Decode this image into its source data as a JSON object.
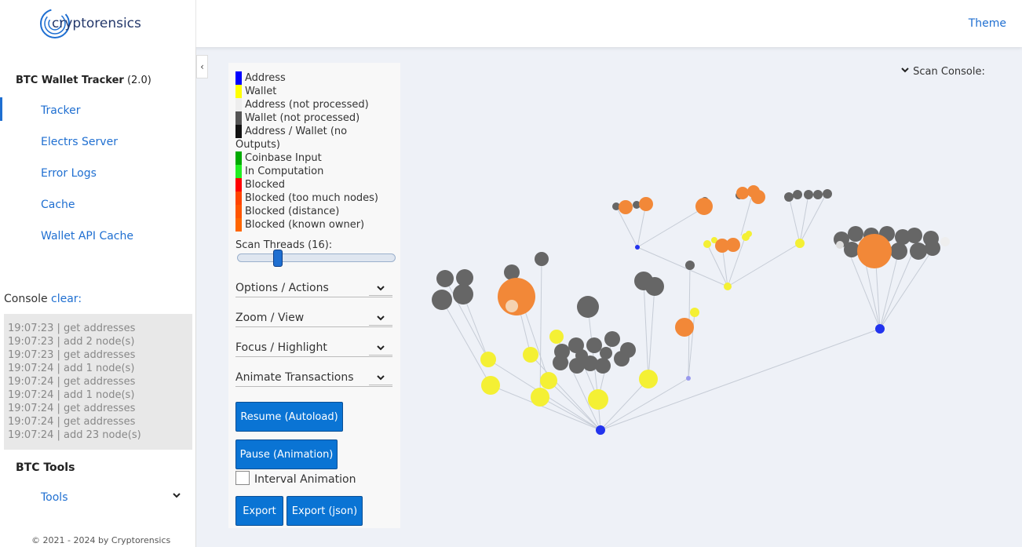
{
  "brand": {
    "name": "cryptorensics"
  },
  "header": {
    "theme_label": "Theme"
  },
  "sidebar": {
    "app_title": "BTC Wallet Tracker",
    "app_version": "(2.0)",
    "items": [
      {
        "label": "Tracker"
      },
      {
        "label": "Electrs Server"
      },
      {
        "label": "Error Logs"
      },
      {
        "label": "Cache"
      },
      {
        "label": "Wallet API Cache"
      }
    ],
    "console_label": "Console",
    "console_clear": "clear:",
    "console_lines": [
      "19:07:23 | get addresses",
      "19:07:23 | add 2 node(s)",
      "19:07:23 | get addresses",
      "19:07:24 | add 1 node(s)",
      "19:07:24 | get addresses",
      "19:07:24 | add 1 node(s)",
      "19:07:24 | get addresses",
      "19:07:24 | get addresses",
      "19:07:24 | add 23 node(s)"
    ],
    "tools_section": "BTC Tools",
    "tools_item": "Tools",
    "footer": "© 2021 - 2024 by Cryptorensics"
  },
  "legend": [
    {
      "label": "Address",
      "color": "#0000ff"
    },
    {
      "label": "Wallet",
      "color": "#ffff00"
    },
    {
      "label": "Address (not processed)",
      "color": "#eeeeee"
    },
    {
      "label": "Wallet (not processed)",
      "color": "#555555"
    },
    {
      "label": "Address / Wallet (no Outputs)",
      "color": "#111111"
    },
    {
      "label": "Coinbase Input",
      "color": "#00aa00"
    },
    {
      "label": "In Computation",
      "color": "#22ee22"
    },
    {
      "label": "Blocked",
      "color": "#ff0000"
    },
    {
      "label": "Blocked (too much nodes)",
      "color": "#ff4400"
    },
    {
      "label": "Blocked (distance)",
      "color": "#ff5500"
    },
    {
      "label": "Blocked (known owner)",
      "color": "#ff6600"
    }
  ],
  "controls": {
    "scan_threads_label": "Scan Threads (16):",
    "scan_threads_value": 16,
    "dropdowns": [
      "Options / Actions",
      "Zoom / View",
      "Focus / Highlight",
      "Animate Transactions"
    ],
    "resume_button": "Resume (Autoload)",
    "pause_button": "Pause (Animation)",
    "interval_label": "Interval Animation",
    "export_button": "Export",
    "export_json_button": "Export (json)"
  },
  "scan_console": {
    "label": "Scan Console:"
  },
  "colors": {
    "accent": "#1f6fd1",
    "button": "#0a74d4"
  }
}
